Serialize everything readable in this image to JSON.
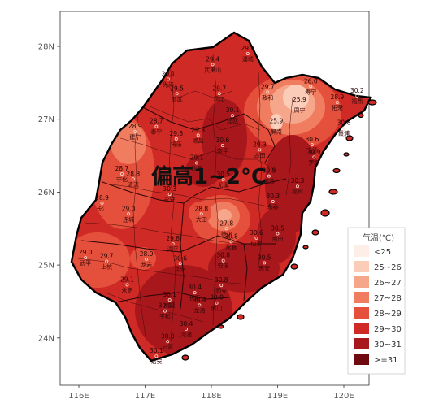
{
  "headline": "偏高1~2°C",
  "axes": {
    "x_ticks": [
      "116E",
      "117E",
      "118E",
      "119E",
      "120E"
    ],
    "y_ticks": [
      "28N",
      "27N",
      "26N",
      "25N",
      "24N"
    ]
  },
  "legend": {
    "title": "气温(℃)",
    "items": [
      {
        "label": "<25",
        "color": "#fdeee8"
      },
      {
        "label": "25~26",
        "color": "#fbcdb9"
      },
      {
        "label": "26~27",
        "color": "#f6a68a"
      },
      {
        "label": "27~28",
        "color": "#f07d60"
      },
      {
        "label": "28~29",
        "color": "#e5503c"
      },
      {
        "label": "29~30",
        "color": "#cf2a25"
      },
      {
        "label": "30~31",
        "color": "#a8171c"
      },
      {
        "label": ">=31",
        "color": "#6e0a10"
      }
    ]
  },
  "stations": [
    {
      "name": "浦城",
      "value": "29.2",
      "lon": 118.55,
      "lat": 27.9
    },
    {
      "name": "武夷山",
      "value": "29.4",
      "lon": 118.02,
      "lat": 27.75
    },
    {
      "name": "光泽",
      "value": "29.1",
      "lon": 117.35,
      "lat": 27.55
    },
    {
      "name": "邵武",
      "value": "29.5",
      "lon": 117.48,
      "lat": 27.35
    },
    {
      "name": "建阳",
      "value": "29.7",
      "lon": 118.12,
      "lat": 27.35
    },
    {
      "name": "政和",
      "value": "29.7",
      "lon": 118.85,
      "lat": 27.37
    },
    {
      "name": "寿宁",
      "value": "26.0",
      "lon": 119.5,
      "lat": 27.45
    },
    {
      "name": "周宁",
      "value": "25.9",
      "lon": 119.33,
      "lat": 27.2
    },
    {
      "name": "柘荣",
      "value": "28.9",
      "lon": 119.9,
      "lat": 27.23
    },
    {
      "name": "福鼎",
      "value": "30.2",
      "lon": 120.2,
      "lat": 27.32
    },
    {
      "name": "建瓯",
      "value": "30.1",
      "lon": 118.32,
      "lat": 27.05
    },
    {
      "name": "屏南",
      "value": "25.9",
      "lon": 118.98,
      "lat": 26.9
    },
    {
      "name": "宁德",
      "value": "30.6",
      "lon": 119.52,
      "lat": 26.65
    },
    {
      "name": "霞浦",
      "value": "30.8",
      "lon": 120.0,
      "lat": 26.88
    },
    {
      "name": "泰宁",
      "value": "28.7",
      "lon": 117.17,
      "lat": 26.9
    },
    {
      "name": "建宁",
      "value": "28.9",
      "lon": 116.85,
      "lat": 26.83
    },
    {
      "name": "将乐",
      "value": "29.8",
      "lon": 117.47,
      "lat": 26.73
    },
    {
      "name": "顺昌",
      "value": "29.8",
      "lon": 117.8,
      "lat": 26.78
    },
    {
      "name": "南平",
      "value": "30.6",
      "lon": 118.17,
      "lat": 26.64
    },
    {
      "name": "古田",
      "value": "29.3",
      "lon": 118.73,
      "lat": 26.58
    },
    {
      "name": "罗源",
      "value": "30.9",
      "lon": 119.55,
      "lat": 26.48
    },
    {
      "name": "宁化",
      "value": "28.7",
      "lon": 116.65,
      "lat": 26.25
    },
    {
      "name": "清流",
      "value": "28.8",
      "lon": 116.82,
      "lat": 26.18
    },
    {
      "name": "沙县",
      "value": "29.1",
      "lon": 117.78,
      "lat": 26.4
    },
    {
      "name": "尤溪",
      "value": "30.5",
      "lon": 118.18,
      "lat": 26.17
    },
    {
      "name": "闽清",
      "value": "30.8",
      "lon": 118.87,
      "lat": 26.22
    },
    {
      "name": "福州",
      "value": "30.3",
      "lon": 119.3,
      "lat": 26.08
    },
    {
      "name": "永安",
      "value": "30.3",
      "lon": 117.37,
      "lat": 25.97
    },
    {
      "name": "长汀",
      "value": "28.9",
      "lon": 116.35,
      "lat": 25.85
    },
    {
      "name": "连城",
      "value": "29.0",
      "lon": 116.75,
      "lat": 25.7
    },
    {
      "name": "大田",
      "value": "28.8",
      "lon": 117.85,
      "lat": 25.7
    },
    {
      "name": "德化",
      "value": "27.8",
      "lon": 118.23,
      "lat": 25.5
    },
    {
      "name": "永泰",
      "value": "30.3",
      "lon": 118.93,
      "lat": 25.87
    },
    {
      "name": "仙游",
      "value": "30.6",
      "lon": 118.68,
      "lat": 25.37
    },
    {
      "name": "莆田",
      "value": "30.5",
      "lon": 119.0,
      "lat": 25.43
    },
    {
      "name": "武平",
      "value": "29.0",
      "lon": 116.1,
      "lat": 25.1
    },
    {
      "name": "上杭",
      "value": "29.7",
      "lon": 116.42,
      "lat": 25.05
    },
    {
      "name": "龙岩",
      "value": "28.9",
      "lon": 117.02,
      "lat": 25.08
    },
    {
      "name": "漳平",
      "value": "29.8",
      "lon": 117.42,
      "lat": 25.29
    },
    {
      "name": "永春",
      "value": "30.8",
      "lon": 118.3,
      "lat": 25.32
    },
    {
      "name": "安溪",
      "value": "30.8",
      "lon": 118.18,
      "lat": 25.06
    },
    {
      "name": "惠安",
      "value": "30.5",
      "lon": 118.8,
      "lat": 25.03
    },
    {
      "name": "永定",
      "value": "29.1",
      "lon": 116.73,
      "lat": 24.73
    },
    {
      "name": "华安",
      "value": "30.6",
      "lon": 117.53,
      "lat": 25.02
    },
    {
      "name": "南靖",
      "value": "30.1",
      "lon": 117.37,
      "lat": 24.52
    },
    {
      "name": "长泰",
      "value": "30.4",
      "lon": 117.75,
      "lat": 24.62
    },
    {
      "name": "同安",
      "value": "30.8",
      "lon": 118.15,
      "lat": 24.72
    },
    {
      "name": "厦门",
      "value": "30.0",
      "lon": 118.08,
      "lat": 24.48
    },
    {
      "name": "平和",
      "value": "30.1",
      "lon": 117.3,
      "lat": 24.37
    },
    {
      "name": "龙海",
      "value": "30.4",
      "lon": 117.82,
      "lat": 24.45
    },
    {
      "name": "漳浦",
      "value": "30.4",
      "lon": 117.62,
      "lat": 24.12
    },
    {
      "name": "云霄",
      "value": "30.0",
      "lon": 117.34,
      "lat": 23.95
    },
    {
      "name": "诏安",
      "value": "30.1",
      "lon": 117.17,
      "lat": 23.75
    }
  ]
}
